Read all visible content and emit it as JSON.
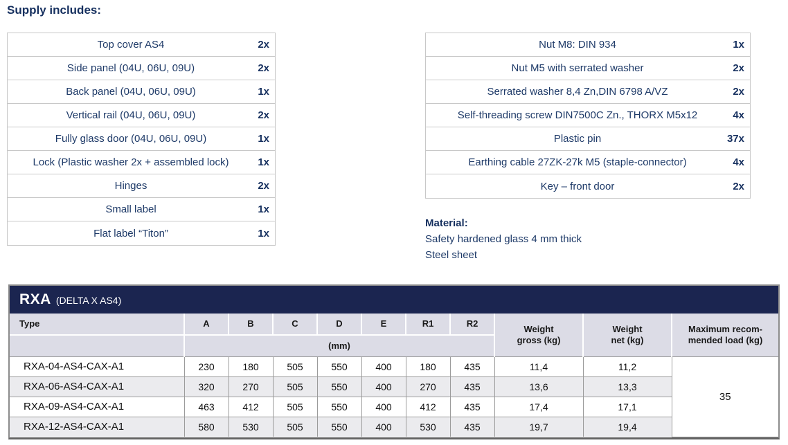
{
  "page": {
    "heading": "Supply includes:"
  },
  "supply_left": {
    "items": [
      {
        "label": "Top cover AS4",
        "qty": "2x"
      },
      {
        "label": "Side panel (04U, 06U, 09U)",
        "qty": "2x"
      },
      {
        "label": "Back panel (04U, 06U, 09U)",
        "qty": "1x"
      },
      {
        "label": "Vertical rail (04U, 06U, 09U)",
        "qty": "2x"
      },
      {
        "label": "Fully glass door (04U, 06U, 09U)",
        "qty": "1x"
      },
      {
        "label": "Lock (Plastic washer 2x + assembled lock)",
        "qty": "1x"
      },
      {
        "label": "Hinges",
        "qty": "2x"
      },
      {
        "label": "Small label",
        "qty": "1x"
      },
      {
        "label": "Flat label “Titon”",
        "qty": "1x"
      }
    ]
  },
  "supply_right": {
    "items": [
      {
        "label": "Nut M8: DIN 934",
        "qty": "1x"
      },
      {
        "label": "Nut M5 with serrated washer",
        "qty": "2x"
      },
      {
        "label": "Serrated washer 8,4 Zn,DIN 6798 A/VZ",
        "qty": "2x"
      },
      {
        "label": "Self-threading screw DIN7500C Zn., THORX M5x12",
        "qty": "4x"
      },
      {
        "label": "Plastic pin",
        "qty": "37x"
      },
      {
        "label": "Earthing cable 27ZK-27k M5 (staple-connector)",
        "qty": "4x"
      },
      {
        "label": "Key – front door",
        "qty": "2x"
      }
    ]
  },
  "material": {
    "heading": "Material:",
    "lines": [
      "Safety hardened glass 4 mm thick",
      "Steel sheet"
    ]
  },
  "spec": {
    "title": "RXA",
    "subtitle": "(DELTA X AS4)",
    "type_header": "Type",
    "dim_headers": [
      "A",
      "B",
      "C",
      "D",
      "E",
      "R1",
      "R2"
    ],
    "unit_row_label": "(mm)",
    "weight_gross_header": [
      "Weight",
      "gross (kg)"
    ],
    "weight_net_header": [
      "Weight",
      "net (kg)"
    ],
    "max_load_header": [
      "Maximum recom-",
      "mended load (kg)"
    ],
    "rows": [
      {
        "type": "RXA-04-AS4-CAX-A1",
        "dims": [
          "230",
          "180",
          "505",
          "550",
          "400",
          "180",
          "435"
        ],
        "weight_gross": "11,4",
        "weight_net": "11,2"
      },
      {
        "type": "RXA-06-AS4-CAX-A1",
        "dims": [
          "320",
          "270",
          "505",
          "550",
          "400",
          "270",
          "435"
        ],
        "weight_gross": "13,6",
        "weight_net": "13,3"
      },
      {
        "type": "RXA-09-AS4-CAX-A1",
        "dims": [
          "463",
          "412",
          "505",
          "550",
          "400",
          "412",
          "435"
        ],
        "weight_gross": "17,4",
        "weight_net": "17,1"
      },
      {
        "type": "RXA-12-AS4-CAX-A1",
        "dims": [
          "580",
          "530",
          "505",
          "550",
          "400",
          "530",
          "435"
        ],
        "weight_gross": "19,7",
        "weight_net": "19,4"
      }
    ],
    "max_load_value": "35"
  },
  "colors": {
    "navy_text": "#1e3a68",
    "heading_navy": "#16305f",
    "title_bar_navy": "#1b2550",
    "header_lavender": "#dcdce6",
    "row_stripe": "#ebebee",
    "data_border": "#9b9b9b",
    "supply_border": "#c8c8c8",
    "frame_border": "#8c8c8c"
  }
}
